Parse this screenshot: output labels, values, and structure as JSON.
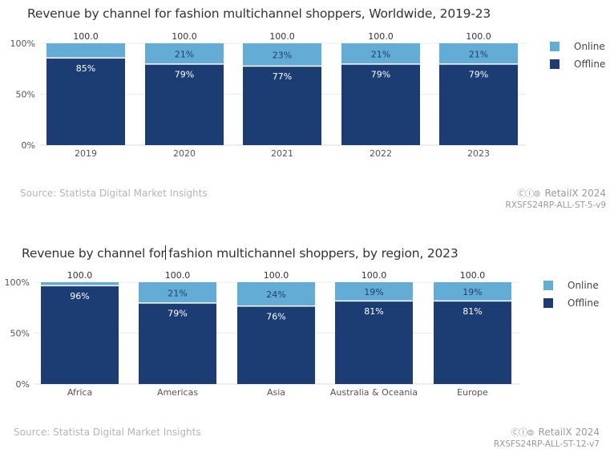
{
  "colors": {
    "online": "#63acd6",
    "offline": "#1c3c74",
    "grid": "#ebebeb",
    "axis": "#d9dde6"
  },
  "chart_data": [
    {
      "type": "bar",
      "stacked": true,
      "title": "Revenue by channel for fashion multichannel shoppers, Worldwide, 2019-23",
      "categories": [
        "2019",
        "2020",
        "2021",
        "2022",
        "2023"
      ],
      "series": [
        {
          "name": "Offline",
          "values": [
            85,
            79,
            77,
            79,
            79
          ],
          "labels": [
            "85%",
            "79%",
            "77%",
            "79%",
            "79%"
          ]
        },
        {
          "name": "Online",
          "values": [
            15,
            21,
            23,
            21,
            21
          ],
          "labels": [
            "",
            "21%",
            "23%",
            "21%",
            "21%"
          ]
        }
      ],
      "totals": [
        "100.0",
        "100.0",
        "100.0",
        "100.0",
        "100.0"
      ],
      "xlabel": "",
      "ylabel": "",
      "yticks": [
        "0%",
        "50%",
        "100%"
      ],
      "ylim": [
        0,
        100
      ],
      "grid": true,
      "legend": {
        "position": "right",
        "entries": [
          "Online",
          "Offline"
        ]
      },
      "source": "Source: Statista Digital Market Insights",
      "brand": "RetailX 2024",
      "code": "RXSFS24RP-ALL-ST-5-v9"
    },
    {
      "type": "bar",
      "stacked": true,
      "title_before_cursor": "Revenue by channel for",
      "title_after_cursor": " fashion multichannel shoppers, by region, 2023",
      "categories": [
        "Africa",
        "Americas",
        "Asia",
        "Australia & Oceania",
        "Europe"
      ],
      "series": [
        {
          "name": "Offline",
          "values": [
            96,
            79,
            76,
            81,
            81
          ],
          "labels": [
            "96%",
            "79%",
            "76%",
            "81%",
            "81%"
          ]
        },
        {
          "name": "Online",
          "values": [
            4,
            21,
            24,
            19,
            19
          ],
          "labels": [
            "",
            "21%",
            "24%",
            "19%",
            "19%"
          ]
        }
      ],
      "totals": [
        "100.0",
        "100.0",
        "100.0",
        "100.0",
        "100.0"
      ],
      "xlabel": "",
      "ylabel": "",
      "yticks": [
        "0%",
        "50%",
        "100%"
      ],
      "ylim": [
        0,
        100
      ],
      "grid": true,
      "legend": {
        "position": "right",
        "entries": [
          "Online",
          "Offline"
        ]
      },
      "source": "Source: Statista Digital Market Insights",
      "brand": "RetailX 2024",
      "code": "RXSFS24RP-ALL-ST-12-v7"
    }
  ],
  "license_icons": "ⒸⒾ⊜"
}
